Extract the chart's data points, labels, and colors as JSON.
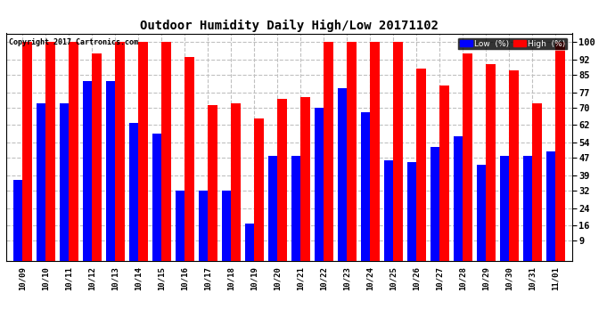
{
  "title": "Outdoor Humidity Daily High/Low 20171102",
  "copyright": "Copyright 2017 Cartronics.com",
  "dates": [
    "10/09",
    "10/10",
    "10/11",
    "10/12",
    "10/13",
    "10/14",
    "10/15",
    "10/16",
    "10/17",
    "10/18",
    "10/19",
    "10/20",
    "10/21",
    "10/22",
    "10/23",
    "10/24",
    "10/25",
    "10/26",
    "10/27",
    "10/28",
    "10/29",
    "10/30",
    "10/31",
    "11/01"
  ],
  "high": [
    100,
    100,
    100,
    95,
    100,
    100,
    100,
    93,
    71,
    72,
    65,
    74,
    75,
    100,
    100,
    100,
    100,
    88,
    80,
    95,
    90,
    87,
    72,
    100
  ],
  "low": [
    37,
    72,
    72,
    82,
    82,
    63,
    58,
    32,
    32,
    32,
    17,
    48,
    48,
    70,
    79,
    68,
    46,
    45,
    52,
    57,
    44,
    48,
    48,
    50
  ],
  "high_color": "#ff0000",
  "low_color": "#0000ff",
  "bg_color": "#ffffff",
  "grid_color": "#c0c0c0",
  "yticks": [
    9,
    16,
    24,
    32,
    39,
    47,
    54,
    62,
    70,
    77,
    85,
    92,
    100
  ],
  "ymin": 0,
  "ymax": 104,
  "bar_width": 0.4
}
